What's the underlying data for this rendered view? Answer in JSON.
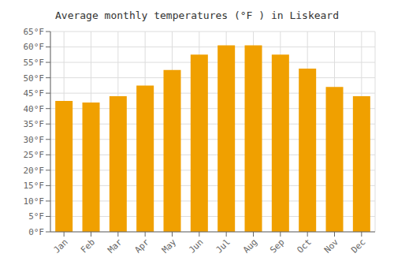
{
  "chart_data": {
    "type": "bar",
    "title": "Average monthly temperatures (°F ) in Liskeard",
    "categories": [
      "Jan",
      "Feb",
      "Mar",
      "Apr",
      "May",
      "Jun",
      "Jul",
      "Aug",
      "Sep",
      "Oct",
      "Nov",
      "Dec"
    ],
    "values": [
      42.5,
      42.0,
      44.0,
      47.5,
      52.5,
      57.5,
      60.5,
      60.5,
      57.5,
      53.0,
      47.0,
      44.0
    ],
    "color": "#F0A000",
    "ylim": [
      0,
      65
    ],
    "yticks": [
      {
        "value": 0,
        "label": "0°F"
      },
      {
        "value": 5,
        "label": "5°F"
      },
      {
        "value": 10,
        "label": "10°F"
      },
      {
        "value": 15,
        "label": "15°F"
      },
      {
        "value": 20,
        "label": "20°F"
      },
      {
        "value": 25,
        "label": "25°F"
      },
      {
        "value": 30,
        "label": "30°F"
      },
      {
        "value": 35,
        "label": "35°F"
      },
      {
        "value": 40,
        "label": "40°F"
      },
      {
        "value": 45,
        "label": "45°F"
      },
      {
        "value": 50,
        "label": "50°F"
      },
      {
        "value": 55,
        "label": "55°F"
      },
      {
        "value": 60,
        "label": "60°F"
      },
      {
        "value": 65,
        "label": "65°F"
      }
    ],
    "grid": true
  }
}
